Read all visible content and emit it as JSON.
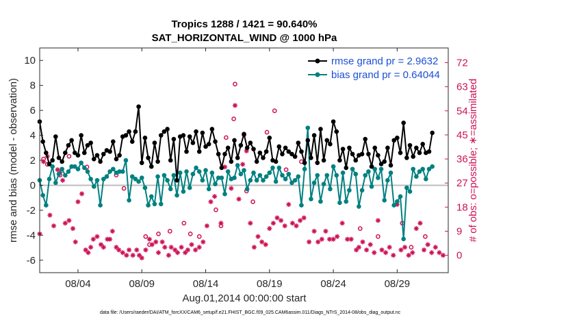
{
  "chart_data": {
    "type": "line",
    "title": "Tropics 1288 / 1421 = 90.640%",
    "subtitle": "SAT_HORIZONTAL_WIND @ 1000 hPa",
    "xlabel": "Aug.01,2014 00:00:00 start",
    "ylabel": "rmse and bias (model - observation)",
    "y2label": "# of obs: o=possible; ∗=assimilated",
    "footnote": "data file: /Users/raeder/DAI/ATM_forcXX/CAM6_setup/f.e21.FHIST_BGC.f09_025.CAM6assim.011/Diags_NTrS_2014-08/obs_diag_output.nc",
    "xlim": [
      1,
      33
    ],
    "ylim": [
      -7,
      11
    ],
    "y2lim": [
      -6.5,
      77.5
    ],
    "x_ticks": [
      4,
      9,
      14,
      19,
      24,
      29
    ],
    "x_tick_labels": [
      "08/04",
      "08/09",
      "08/14",
      "08/19",
      "08/24",
      "08/29"
    ],
    "y_ticks": [
      -6,
      -4,
      -2,
      0,
      2,
      4,
      6,
      8,
      10
    ],
    "y2_ticks": [
      0,
      9,
      18,
      27,
      36,
      45,
      54,
      63,
      72
    ],
    "legend": [
      "rmse grand pr = 2.9632",
      "bias grand pr = 0.64044"
    ],
    "legend_position": "top-right",
    "zero_line": 0,
    "x_start": 1.0,
    "x_step": 0.25,
    "series": [
      {
        "name": "rmse grand pr = 2.9632",
        "color": "#000000",
        "values": [
          5.1,
          3.5,
          2.6,
          1.7,
          2.0,
          3.9,
          2.2,
          1.9,
          2.6,
          3.2,
          3.6,
          2.6,
          2.4,
          4.0,
          2.6,
          3.2,
          3.4,
          2.1,
          2.4,
          1.9,
          2.5,
          2.8,
          2.7,
          3.5,
          2.1,
          2.4,
          3.9,
          4.0,
          4.3,
          3.5,
          4.3,
          6.3,
          1.8,
          3.8,
          2.2,
          1.5,
          3.4,
          1.9,
          4.0,
          4.3,
          4.5,
          2.0,
          3.7,
          0.4,
          3.9,
          4.0,
          2.7,
          3.9,
          3.4,
          4.3,
          2.7,
          4.2,
          3.1,
          3.3,
          4.5,
          3.5,
          2.5,
          1.4,
          2.5,
          3.0,
          1.9,
          3.6,
          2.2,
          3.2,
          4.1,
          3.0,
          3.4,
          2.9,
          1.9,
          2.6,
          2.2,
          2.7,
          3.8,
          2.0,
          1.9,
          3.1,
          2.5,
          3.0,
          2.7,
          2.5,
          2.3,
          3.4,
          2.7,
          1.8,
          3.6,
          2.2,
          4.0,
          1.8,
          4.5,
          2.0,
          3.6,
          3.3,
          5.1,
          4.3,
          2.0,
          2.9,
          1.4,
          3.0,
          2.5,
          2.0,
          2.4,
          2.5,
          3.7,
          2.5,
          1.5,
          3.0,
          2.4,
          1.7,
          1.9,
          3.0,
          1.6,
          3.6,
          3.8,
          2.6,
          5.0,
          2.2,
          3.2,
          2.3,
          3.0,
          2.6,
          3.3,
          2.6,
          2.7,
          4.2
        ]
      },
      {
        "name": "bias grand pr = 0.64044",
        "color": "#008080",
        "values": [
          0.4,
          -0.8,
          -1.6,
          0.5,
          1.5,
          0.2,
          0.9,
          1.3,
          0.8,
          1.1,
          1.5,
          1.5,
          1.3,
          1.8,
          1.4,
          1.1,
          0.5,
          -0.1,
          0.4,
          -1.6,
          0.5,
          0.7,
          1.1,
          1.3,
          1.0,
          1.1,
          1.1,
          2.0,
          -1.2,
          0.7,
          0.5,
          0.3,
          0.6,
          -0.2,
          -1.6,
          -0.9,
          -1.5,
          0.7,
          -1.5,
          0.8,
          0.4,
          -0.3,
          0.8,
          -0.8,
          1.0,
          -0.5,
          1.1,
          -0.2,
          0.9,
          1.4,
          1.1,
          0.4,
          1.2,
          -0.3,
          1.0,
          0.1,
          0.6,
          0.6,
          -0.7,
          1.1,
          0.5,
          0.6,
          1.6,
          0.9,
          1.2,
          -0.3,
          0.4,
          1.0,
          0.4,
          0.8,
          0.4,
          0.7,
          1.0,
          1.4,
          0.3,
          1.4,
          0.8,
          0.5,
          0.9,
          0.2,
          0.4,
          0.7,
          -1.6,
          1.3,
          4.6,
          -1.1,
          0.2,
          0.8,
          -1.3,
          0.1,
          0.8,
          -0.3,
          1.5,
          0.8,
          -1.4,
          1.0,
          -1.3,
          -0.4,
          1.3,
          0.9,
          -1.7,
          -0.4,
          0.8,
          1.1,
          -0.1,
          1.3,
          0.6,
          1.3,
          -1.2,
          0.4,
          1.0,
          -1.6,
          -1.3,
          -0.9,
          -4.3,
          -0.2,
          -0.5,
          1.3,
          0.7,
          1.1,
          1.3,
          0.5,
          1.3,
          1.5
        ]
      }
    ],
    "obs_possible": [
      {
        "x": 1.3,
        "y": 36
      },
      {
        "x": 1.6,
        "y": 34
      },
      {
        "x": 2.6,
        "y": 30
      },
      {
        "x": 3.3,
        "y": 37
      },
      {
        "x": 4.7,
        "y": 33
      },
      {
        "x": 7.0,
        "y": 30
      },
      {
        "x": 7.6,
        "y": 25
      },
      {
        "x": 9.3,
        "y": 7
      },
      {
        "x": 9.6,
        "y": 4
      },
      {
        "x": 10.3,
        "y": 8
      },
      {
        "x": 11.2,
        "y": 9
      },
      {
        "x": 12.3,
        "y": 12
      },
      {
        "x": 12.8,
        "y": 8
      },
      {
        "x": 13.5,
        "y": 7
      },
      {
        "x": 14.8,
        "y": 17
      },
      {
        "x": 15.2,
        "y": 11
      },
      {
        "x": 15.6,
        "y": 44
      },
      {
        "x": 16.2,
        "y": 51
      },
      {
        "x": 16.3,
        "y": 64
      },
      {
        "x": 17.0,
        "y": 45
      },
      {
        "x": 17.2,
        "y": 24
      },
      {
        "x": 17.7,
        "y": 20
      },
      {
        "x": 18.8,
        "y": 46
      },
      {
        "x": 19.4,
        "y": 54
      },
      {
        "x": 20.3,
        "y": 32
      },
      {
        "x": 21.5,
        "y": 35
      },
      {
        "x": 26.1,
        "y": 10
      },
      {
        "x": 27.5,
        "y": 7
      },
      {
        "x": 29.4,
        "y": 12
      },
      {
        "x": 30.1,
        "y": 3
      },
      {
        "x": 31.2,
        "y": 7
      }
    ],
    "obs_assimilated": [
      {
        "x": 1.0,
        "y": 8
      },
      {
        "x": 1.3,
        "y": 35
      },
      {
        "x": 1.6,
        "y": 37
      },
      {
        "x": 1.8,
        "y": 15
      },
      {
        "x": 2.1,
        "y": 11
      },
      {
        "x": 2.4,
        "y": 32
      },
      {
        "x": 2.6,
        "y": 31
      },
      {
        "x": 2.8,
        "y": 28
      },
      {
        "x": 3.0,
        "y": 12
      },
      {
        "x": 3.3,
        "y": 13
      },
      {
        "x": 3.6,
        "y": 10
      },
      {
        "x": 3.8,
        "y": 5
      },
      {
        "x": 4.0,
        "y": 20
      },
      {
        "x": 4.3,
        "y": 23
      },
      {
        "x": 4.6,
        "y": 2
      },
      {
        "x": 4.8,
        "y": 1
      },
      {
        "x": 5.0,
        "y": 3
      },
      {
        "x": 5.2,
        "y": 6
      },
      {
        "x": 5.5,
        "y": 7
      },
      {
        "x": 5.8,
        "y": 4
      },
      {
        "x": 6.0,
        "y": 3
      },
      {
        "x": 6.3,
        "y": 6
      },
      {
        "x": 6.5,
        "y": 6
      },
      {
        "x": 6.7,
        "y": 9
      },
      {
        "x": 7.0,
        "y": 3
      },
      {
        "x": 7.2,
        "y": 2
      },
      {
        "x": 7.5,
        "y": 1
      },
      {
        "x": 7.8,
        "y": 0
      },
      {
        "x": 8.0,
        "y": 2
      },
      {
        "x": 8.3,
        "y": 0
      },
      {
        "x": 8.6,
        "y": 2
      },
      {
        "x": 8.8,
        "y": 0
      },
      {
        "x": 9.0,
        "y": -1
      },
      {
        "x": 9.3,
        "y": 2
      },
      {
        "x": 9.6,
        "y": 6
      },
      {
        "x": 9.8,
        "y": 4
      },
      {
        "x": 10.1,
        "y": 5
      },
      {
        "x": 10.3,
        "y": 1
      },
      {
        "x": 10.6,
        "y": 5
      },
      {
        "x": 10.8,
        "y": 3
      },
      {
        "x": 11.1,
        "y": 0
      },
      {
        "x": 11.3,
        "y": 3
      },
      {
        "x": 11.6,
        "y": 2
      },
      {
        "x": 11.8,
        "y": 1
      },
      {
        "x": 12.1,
        "y": 3
      },
      {
        "x": 12.4,
        "y": 1
      },
      {
        "x": 12.6,
        "y": 2
      },
      {
        "x": 12.9,
        "y": 4
      },
      {
        "x": 13.2,
        "y": 2
      },
      {
        "x": 13.5,
        "y": 3
      },
      {
        "x": 13.8,
        "y": 5
      },
      {
        "x": 14.1,
        "y": 11
      },
      {
        "x": 14.4,
        "y": 20
      },
      {
        "x": 14.7,
        "y": 22
      },
      {
        "x": 15.2,
        "y": 12
      },
      {
        "x": 15.5,
        "y": 33
      },
      {
        "x": 16.0,
        "y": 25
      },
      {
        "x": 16.3,
        "y": 56
      },
      {
        "x": 16.6,
        "y": 21
      },
      {
        "x": 16.9,
        "y": 34
      },
      {
        "x": 17.2,
        "y": 39
      },
      {
        "x": 17.5,
        "y": 12
      },
      {
        "x": 17.8,
        "y": 3
      },
      {
        "x": 18.1,
        "y": 7
      },
      {
        "x": 18.4,
        "y": 5
      },
      {
        "x": 18.7,
        "y": 4
      },
      {
        "x": 19.0,
        "y": 10
      },
      {
        "x": 19.3,
        "y": 12
      },
      {
        "x": 19.6,
        "y": 14
      },
      {
        "x": 19.9,
        "y": 13
      },
      {
        "x": 20.2,
        "y": 11
      },
      {
        "x": 20.5,
        "y": 19
      },
      {
        "x": 20.8,
        "y": 12
      },
      {
        "x": 21.1,
        "y": 11
      },
      {
        "x": 21.4,
        "y": 13
      },
      {
        "x": 21.7,
        "y": 14
      },
      {
        "x": 22.1,
        "y": 5
      },
      {
        "x": 22.5,
        "y": 9
      },
      {
        "x": 22.8,
        "y": 5
      },
      {
        "x": 23.1,
        "y": 6
      },
      {
        "x": 23.4,
        "y": 9
      },
      {
        "x": 23.7,
        "y": 6
      },
      {
        "x": 24.0,
        "y": 6
      },
      {
        "x": 24.3,
        "y": 7
      },
      {
        "x": 24.7,
        "y": 12
      },
      {
        "x": 25.1,
        "y": 6
      },
      {
        "x": 25.4,
        "y": 6
      },
      {
        "x": 25.8,
        "y": 2
      },
      {
        "x": 26.0,
        "y": 3
      },
      {
        "x": 26.3,
        "y": 5
      },
      {
        "x": 26.6,
        "y": 2
      },
      {
        "x": 26.9,
        "y": 4
      },
      {
        "x": 27.2,
        "y": 1
      },
      {
        "x": 27.5,
        "y": 13
      },
      {
        "x": 27.8,
        "y": 2
      },
      {
        "x": 28.1,
        "y": 1
      },
      {
        "x": 28.4,
        "y": 3
      },
      {
        "x": 28.7,
        "y": 0
      },
      {
        "x": 29.0,
        "y": 19
      },
      {
        "x": 29.3,
        "y": 2
      },
      {
        "x": 29.6,
        "y": 3
      },
      {
        "x": 29.9,
        "y": 0
      },
      {
        "x": 30.2,
        "y": 1
      },
      {
        "x": 30.5,
        "y": 10
      },
      {
        "x": 30.8,
        "y": 12
      },
      {
        "x": 31.1,
        "y": 2
      },
      {
        "x": 31.4,
        "y": 4
      },
      {
        "x": 31.7,
        "y": 1
      },
      {
        "x": 32.0,
        "y": 3
      },
      {
        "x": 32.3,
        "y": 1
      },
      {
        "x": 32.6,
        "y": 0
      }
    ]
  }
}
